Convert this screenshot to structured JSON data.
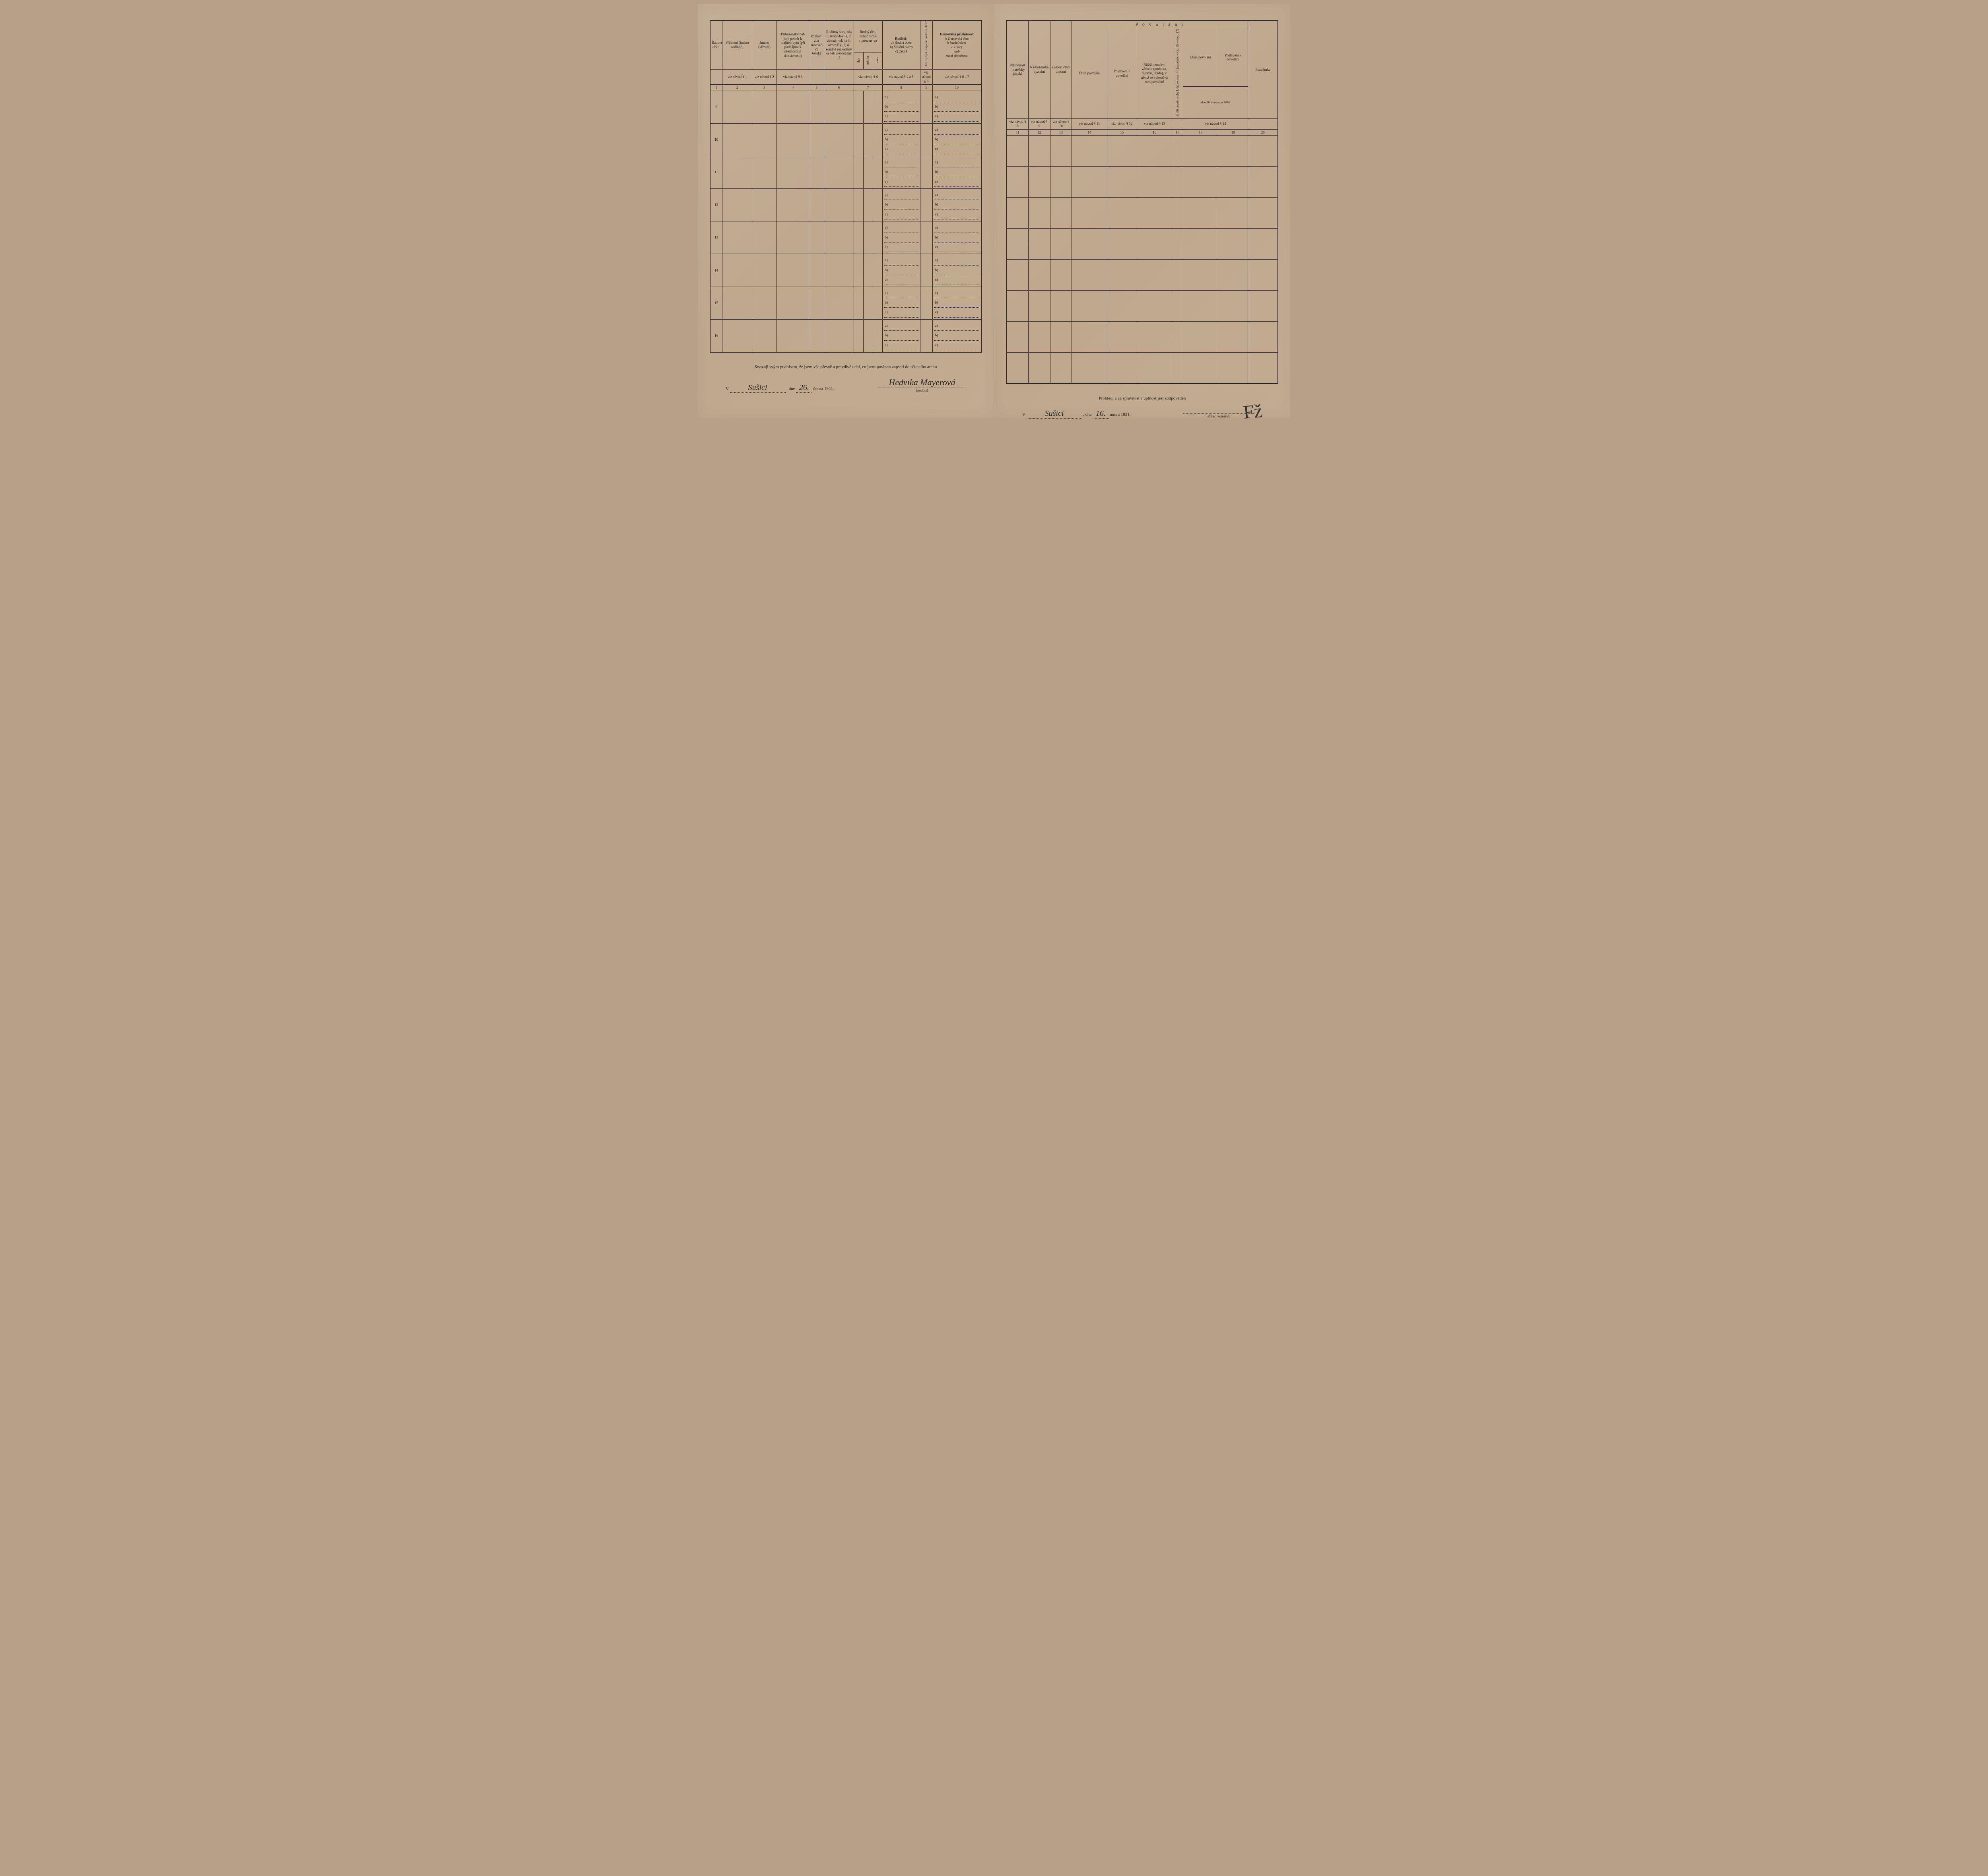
{
  "left": {
    "headers": {
      "col1": "Řadové číslo.",
      "col2": "Příjmení (jméno rodinné)",
      "col3": "Jméno (křestní)",
      "col4": "Příbuzenský neb jiný poměr k majiteli bytu (při podnájmu k přednostovi domácnosti)",
      "col5": "Pohlaví, zda mužské či ženské",
      "col6": "Rodinný stav, zda 1. svobodný -á, 2. ženatý, vdaná 3. ovdovělý -á, 4. soudně rozvedený -á neb rozloučený -á",
      "col7": "Rodný den, měsíc a rok (narozen -a)",
      "col7a": "dne",
      "col7b": "měsíce",
      "col7c": "roku",
      "col8": "Rodiště:",
      "col8sub": "a) Rodná obec\nb) Soudní okres\nc) Země",
      "col9": "Od kdy bydlí zapsaná osoba v obci?",
      "col10": "Domovská příslušnost",
      "col10sub": "(a Domovská obec\nb Soudní okres\nc Země)\naneb\nstátní příslušnost"
    },
    "refs": {
      "r2": "viz návod § 1",
      "r3": "viz návod § 2",
      "r4": "viz návod § 3",
      "r7": "viz návod § 4",
      "r8": "viz návod § 4 a 5",
      "r9": "viz návod § 6",
      "r10": "viz návod § 6 a 7"
    },
    "nums": [
      "1",
      "2",
      "3",
      "4",
      "5",
      "6",
      "7",
      "8",
      "9",
      "10"
    ],
    "rows": [
      "9",
      "10",
      "11",
      "12",
      "13",
      "14",
      "15",
      "16"
    ],
    "footer_text": "Stvrzuji svým podpisem, že jsem vše přesně a pravdivě udal, co jsem povinen zapsati do sčítacího archu",
    "place_prefix": "V",
    "place": "Sušici",
    "date_prefix": ", dne",
    "date_day": "26.",
    "date_rest": "února 1921.",
    "signature": "Hedvika Mayerová",
    "sig_label": "(podpis)"
  },
  "right": {
    "headers": {
      "col11": "Národnost (mateřský jazyk)",
      "col12": "Ná-boženské vyznání",
      "col13": "Znalost čtení a psaní",
      "povolani": "P o v o l á n í",
      "col14": "Druh povolání",
      "col15": "Postavení v povolání",
      "col16": "Bližší označení závodu (podniku, ústavu, úřadu), v němž se vykonává toto povolání",
      "col17v": "Bližší poměr osoby k držiteli pol. 16 (u podnik. v čís. 16, v dom. 17)",
      "col18": "Druh povolání",
      "col19": "Postavení v povolání",
      "date_line": "dne 16. července 1914",
      "col20": "Poznámka"
    },
    "refs": {
      "r11": "viz návod § 8",
      "r12": "viz návod § 9",
      "r13": "viz návod § 10",
      "r14": "viz návod § 11",
      "r15": "viz návod § 12",
      "r16": "viz návod § 13",
      "r18": "viz návod § 14"
    },
    "nums": [
      "11",
      "12",
      "13",
      "14",
      "15",
      "16",
      "17",
      "18",
      "19",
      "20"
    ],
    "footer_text": "Prohlédl a za správnost a úplnost jest zodpověden",
    "place_prefix": "V",
    "place": "Sušici",
    "date_prefix": ", dne",
    "date_day": "16.",
    "date_rest": "února 1921.",
    "sig_label": "sčítací komisař.",
    "signature_mark": "Fž"
  },
  "abc": {
    "a": "a)",
    "b": "b)",
    "c": "c)"
  },
  "colors": {
    "paper": "#bfa88e",
    "ink": "#2a2520"
  }
}
